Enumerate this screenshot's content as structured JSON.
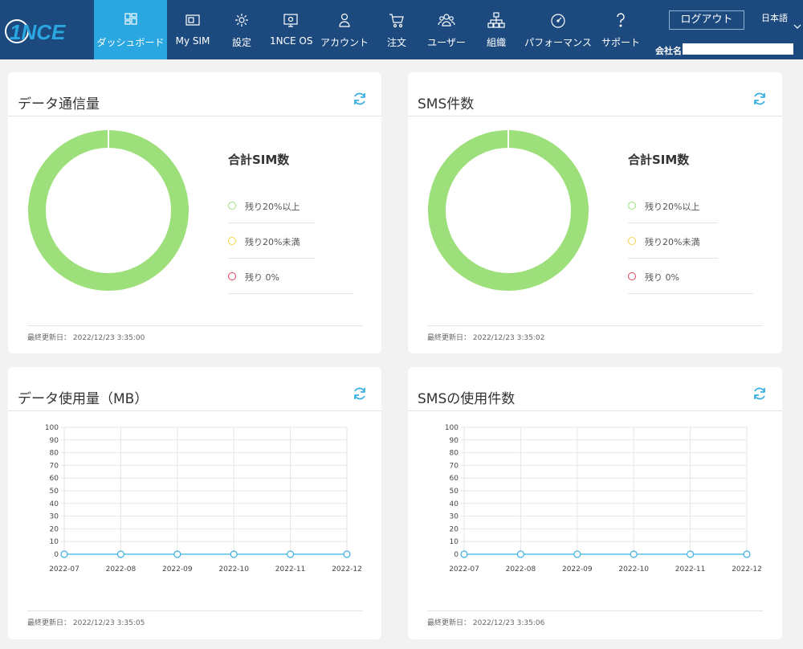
{
  "header": {
    "logo_text": "1NCE",
    "nav": [
      {
        "label": "ダッシュボード",
        "icon": "dashboard-icon",
        "active": true
      },
      {
        "label": "My SIM",
        "icon": "sim-card-icon"
      },
      {
        "label": "設定",
        "icon": "gear-icon"
      },
      {
        "label": "1NCE OS",
        "icon": "os-icon"
      },
      {
        "label": "アカウント",
        "icon": "user-icon"
      },
      {
        "label": "注文",
        "icon": "cart-icon"
      },
      {
        "label": "ユーザー",
        "icon": "users-icon"
      },
      {
        "label": "組織",
        "icon": "org-chart-icon"
      },
      {
        "label": "パフォーマンス",
        "icon": "gauge-icon"
      },
      {
        "label": "サポート",
        "icon": "question-icon"
      }
    ],
    "logout_label": "ログアウト",
    "language": "日本語",
    "company_label": "会社名:"
  },
  "colors": {
    "header_bg": "#1d4a7e",
    "active_tab": "#2aa6e0",
    "green": "#9ddf7a",
    "yellow": "#f3d44c",
    "red": "#e8425a",
    "line": "#3ab0e2"
  },
  "cards": {
    "data_traffic": {
      "title": "データ通信量",
      "legend_title": "合計SIM数",
      "legend": [
        "残り20%以上",
        "残り20%未満",
        "残り 0%"
      ],
      "updated": "最終更新日： 2022/12/23 3:35:00"
    },
    "sms_count": {
      "title": "SMS件数",
      "legend_title": "合計SIM数",
      "legend": [
        "残り20%以上",
        "残り20%未満",
        "残り 0%"
      ],
      "updated": "最終更新日： 2022/12/23 3:35:02"
    },
    "data_usage": {
      "title": "データ使用量（MB）",
      "updated": "最終更新日： 2022/12/23 3:35:05"
    },
    "sms_usage": {
      "title": "SMSの使用件数",
      "updated": "最終更新日： 2022/12/23 3:35:06"
    }
  },
  "chart_data": [
    {
      "type": "line",
      "title": "データ使用量（MB）",
      "x": [
        "2022-07",
        "2022-08",
        "2022-09",
        "2022-10",
        "2022-11",
        "2022-12"
      ],
      "y": [
        0,
        0,
        0,
        0,
        0,
        0
      ],
      "ylim": [
        0,
        100
      ],
      "yticks": [
        0,
        10,
        20,
        30,
        40,
        50,
        60,
        70,
        80,
        90,
        100
      ],
      "grid": true
    },
    {
      "type": "line",
      "title": "SMSの使用件数",
      "x": [
        "2022-07",
        "2022-08",
        "2022-09",
        "2022-10",
        "2022-11",
        "2022-12"
      ],
      "y": [
        0,
        0,
        0,
        0,
        0,
        0
      ],
      "ylim": [
        0,
        100
      ],
      "yticks": [
        0,
        10,
        20,
        30,
        40,
        50,
        60,
        70,
        80,
        90,
        100
      ],
      "grid": true
    }
  ]
}
